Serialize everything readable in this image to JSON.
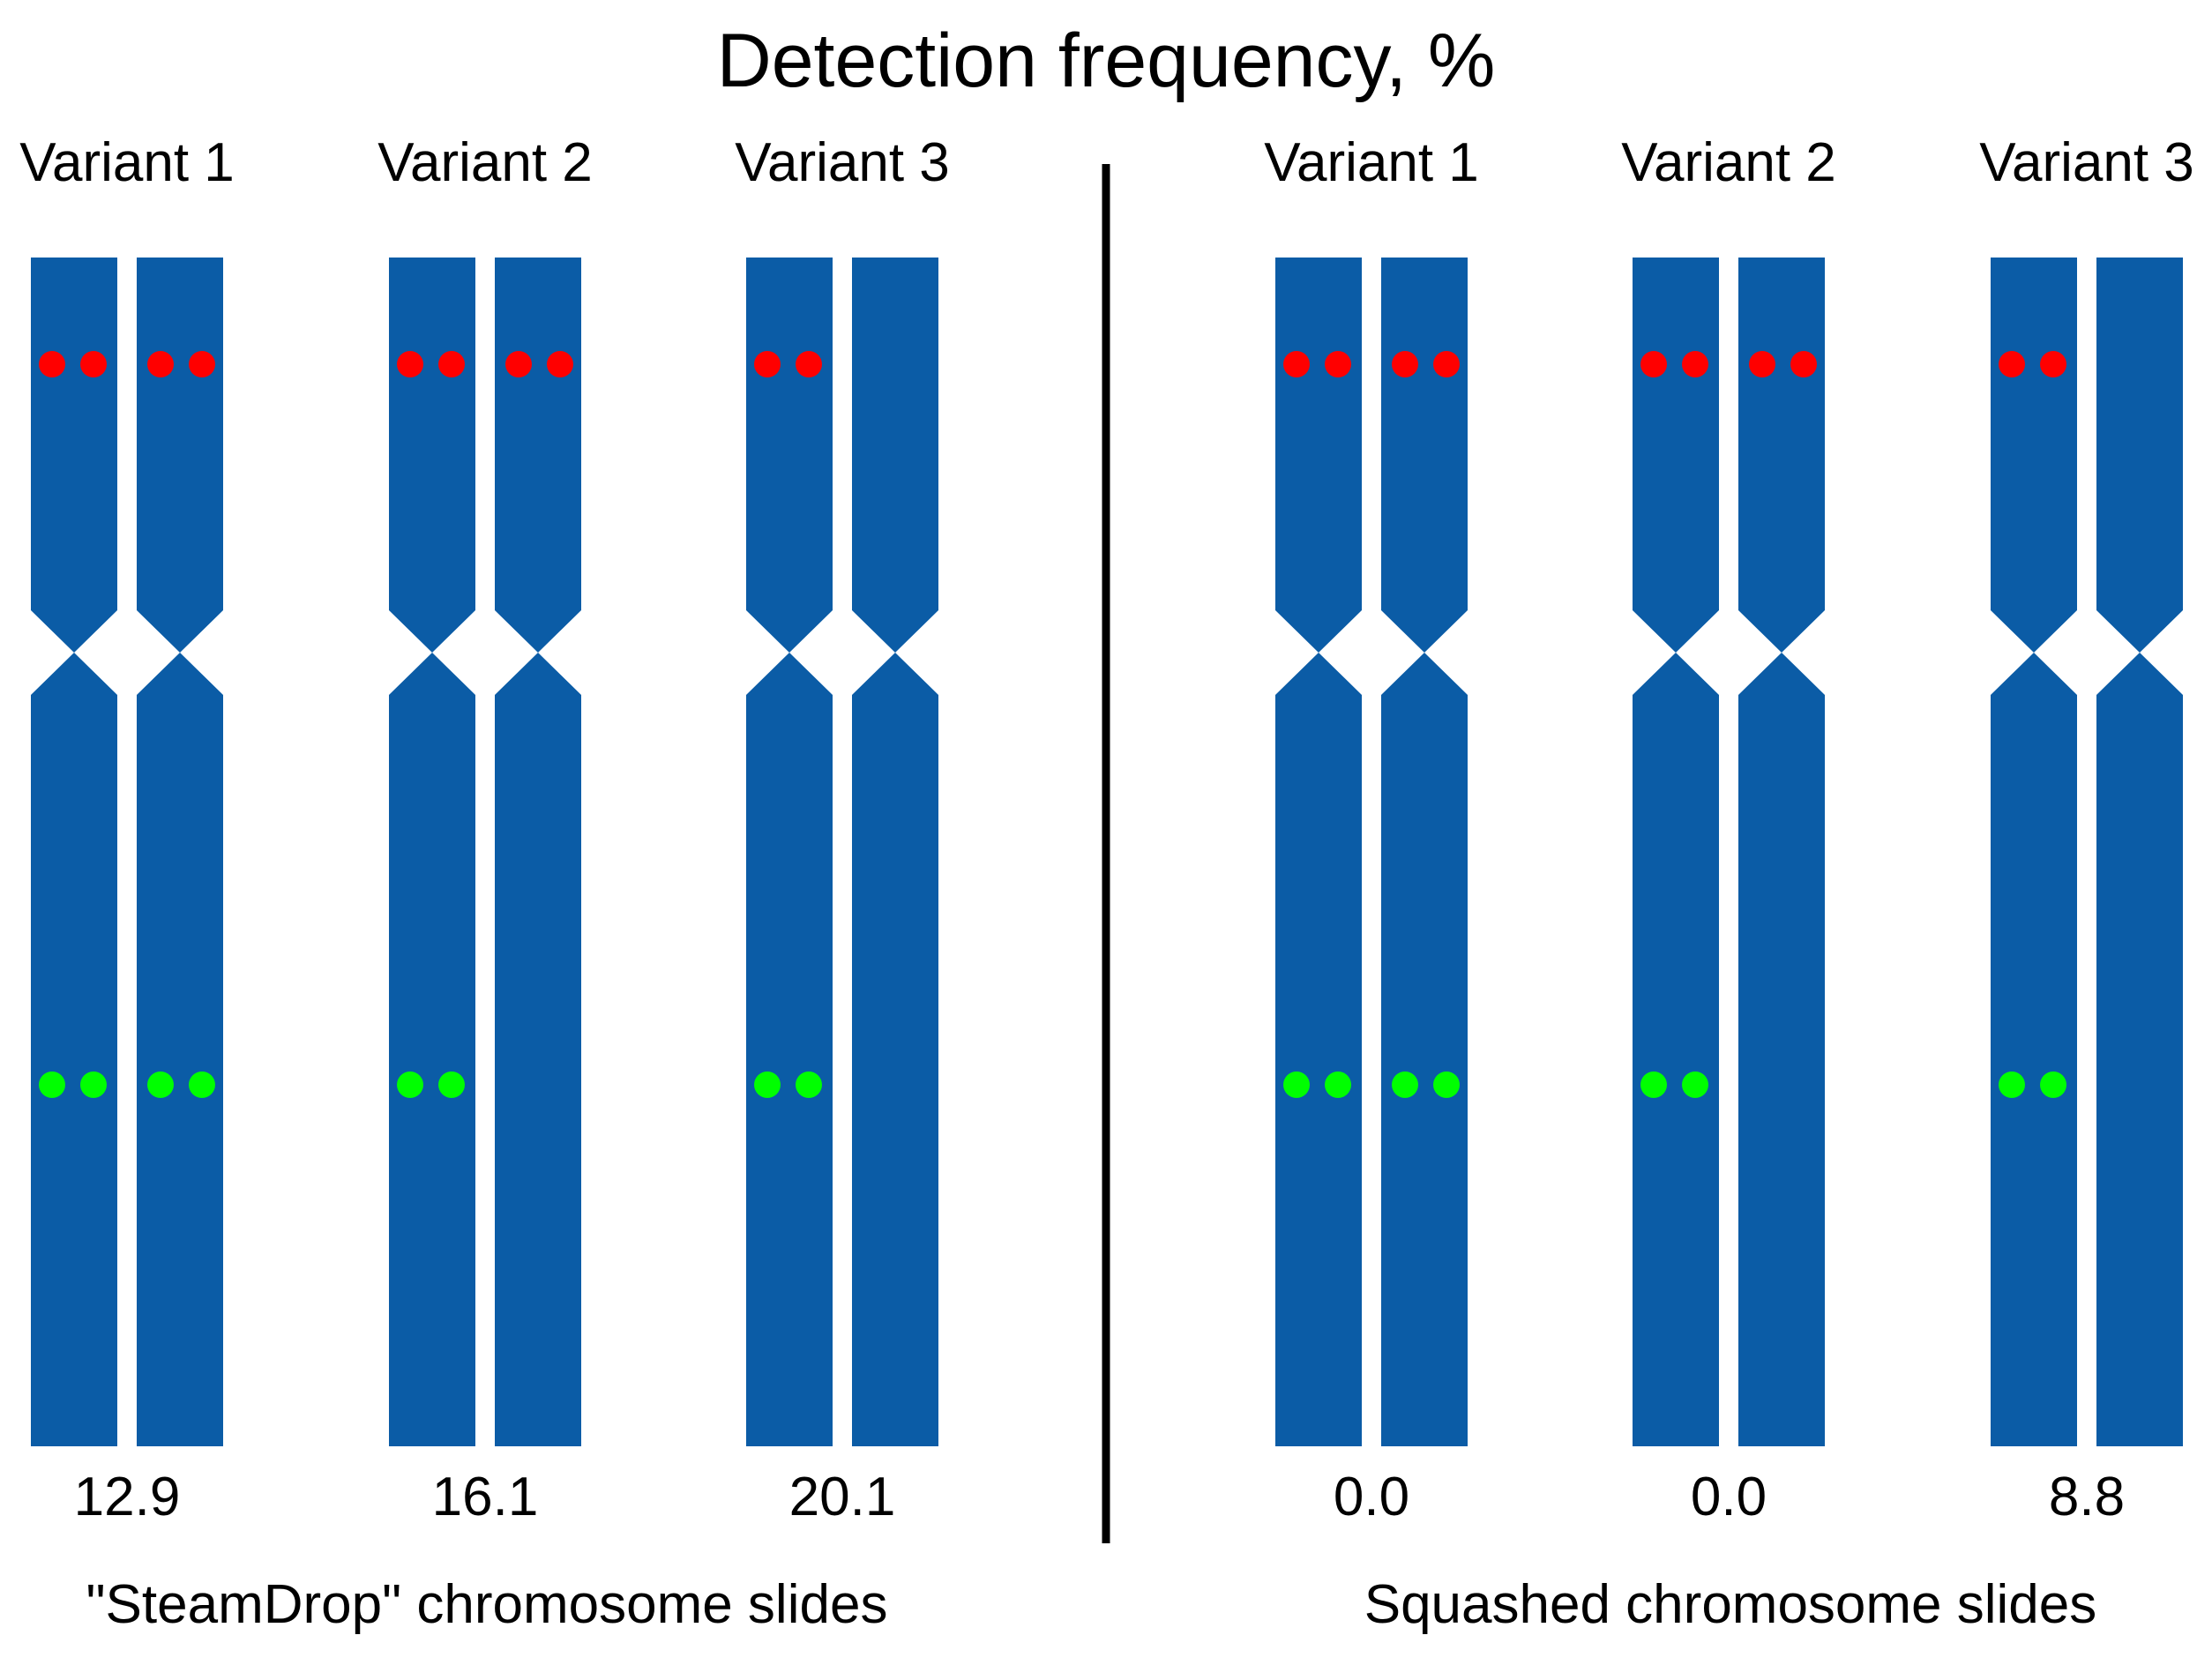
{
  "title": "Detection frequency, %",
  "colors": {
    "chromosome": "#0B5CA6",
    "red_signal": "#FF0000",
    "green_signal": "#00FF00",
    "divider": "#000000",
    "text": "#000000"
  },
  "panels": [
    {
      "caption": "\"SteamDrop\" chromosome slides",
      "variants": [
        {
          "label": "Variant 1",
          "frequency": "12.9",
          "chromatids": [
            {
              "red_signal": true,
              "green_signal": true
            },
            {
              "red_signal": true,
              "green_signal": true
            }
          ]
        },
        {
          "label": "Variant 2",
          "frequency": "16.1",
          "chromatids": [
            {
              "red_signal": true,
              "green_signal": true
            },
            {
              "red_signal": true,
              "green_signal": false
            }
          ]
        },
        {
          "label": "Variant 3",
          "frequency": "20.1",
          "chromatids": [
            {
              "red_signal": true,
              "green_signal": true
            },
            {
              "red_signal": false,
              "green_signal": false
            }
          ]
        }
      ]
    },
    {
      "caption": "Squashed chromosome slides",
      "variants": [
        {
          "label": "Variant 1",
          "frequency": "0.0",
          "chromatids": [
            {
              "red_signal": true,
              "green_signal": true
            },
            {
              "red_signal": true,
              "green_signal": true
            }
          ]
        },
        {
          "label": "Variant 2",
          "frequency": "0.0",
          "chromatids": [
            {
              "red_signal": true,
              "green_signal": true
            },
            {
              "red_signal": true,
              "green_signal": false
            }
          ]
        },
        {
          "label": "Variant 3",
          "frequency": "8.8",
          "chromatids": [
            {
              "red_signal": true,
              "green_signal": true
            },
            {
              "red_signal": false,
              "green_signal": false
            }
          ]
        }
      ]
    }
  ]
}
